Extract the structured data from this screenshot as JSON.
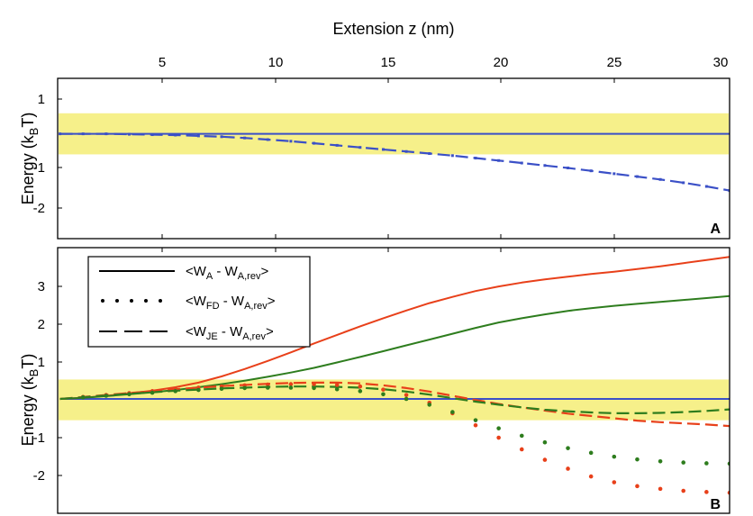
{
  "figure": {
    "x_axis_title": "Extension z (nm)",
    "x_ticks": [
      "5",
      "10",
      "15",
      "20",
      "25",
      "30"
    ],
    "band_color": "#f6f08a",
    "zero_line_color": "#3b50c7",
    "accent_blue": "#3b50c7",
    "accent_red": "#e8401a",
    "accent_green": "#2e7d1e"
  },
  "chart_data": [
    {
      "panel": "A",
      "type": "line",
      "ylabel": "Energy (k",
      "ylabel_sub": "B",
      "ylabel_end": "T)",
      "y_ticks": [
        "1",
        "-1",
        "-2"
      ],
      "xlim": [
        0.9,
        30
      ],
      "ylim": [
        -2.55,
        1.35
      ],
      "band": [
        -0.5,
        0.5
      ],
      "series": [
        {
          "style": "solid",
          "color": "#3b50c7",
          "x": [
            1,
            30
          ],
          "y": [
            0,
            0
          ]
        },
        {
          "style": "dashed",
          "color": "#3b50c7",
          "x": [
            1,
            2,
            3,
            4,
            5,
            6,
            7,
            8,
            9,
            10,
            11,
            12,
            13,
            14,
            15,
            16,
            17,
            18,
            19,
            20,
            21,
            22,
            23,
            24,
            25,
            26,
            27,
            28,
            29,
            30
          ],
          "y": [
            0,
            0,
            0,
            -0.01,
            -0.02,
            -0.03,
            -0.05,
            -0.07,
            -0.1,
            -0.14,
            -0.18,
            -0.23,
            -0.28,
            -0.33,
            -0.38,
            -0.43,
            -0.48,
            -0.53,
            -0.59,
            -0.65,
            -0.71,
            -0.77,
            -0.83,
            -0.9,
            -0.97,
            -1.04,
            -1.11,
            -1.19,
            -1.28,
            -1.38
          ]
        }
      ]
    },
    {
      "panel": "B",
      "type": "line",
      "ylabel": "Energy (k",
      "ylabel_sub": "B",
      "ylabel_end": "T)",
      "y_ticks": [
        "3",
        "2",
        "1",
        "-1",
        "-2"
      ],
      "xlim": [
        0.9,
        30
      ],
      "ylim": [
        -2.95,
        3.9
      ],
      "band": [
        -0.55,
        0.5
      ],
      "legend_position": "top-left",
      "legend": [
        {
          "style": "solid",
          "prefix": "<W",
          "sub1": "A",
          "mid": " - W",
          "sub2": "A,rev",
          "suffix": ">"
        },
        {
          "style": "dotted",
          "prefix": "<W",
          "sub1": "FD",
          "mid": " - W",
          "sub2": "A,rev",
          "suffix": ">"
        },
        {
          "style": "dashed",
          "prefix": "<W",
          "sub1": "JE",
          "mid": " - W",
          "sub2": "A,rev",
          "suffix": ">"
        }
      ],
      "series": [
        {
          "style": "solid",
          "color": "#3b50c7",
          "x": [
            1,
            30
          ],
          "y": [
            0,
            0
          ]
        },
        {
          "style": "solid",
          "color": "#e8401a",
          "x": [
            1,
            2,
            3,
            4,
            5,
            6,
            7,
            8,
            9,
            10,
            11,
            12,
            13,
            14,
            15,
            16,
            17,
            18,
            19,
            20,
            21,
            22,
            23,
            24,
            25,
            26,
            27,
            28,
            29,
            30
          ],
          "y": [
            0,
            0.03,
            0.08,
            0.14,
            0.21,
            0.3,
            0.42,
            0.58,
            0.77,
            0.98,
            1.2,
            1.43,
            1.65,
            1.87,
            2.08,
            2.28,
            2.47,
            2.63,
            2.78,
            2.9,
            3.0,
            3.08,
            3.15,
            3.22,
            3.28,
            3.35,
            3.42,
            3.5,
            3.58,
            3.66
          ]
        },
        {
          "style": "solid",
          "color": "#2e7d1e",
          "x": [
            1,
            2,
            3,
            4,
            5,
            6,
            7,
            8,
            9,
            10,
            11,
            12,
            13,
            14,
            15,
            16,
            17,
            18,
            19,
            20,
            21,
            22,
            23,
            24,
            25,
            26,
            27,
            28,
            29,
            30
          ],
          "y": [
            0,
            0.03,
            0.07,
            0.12,
            0.17,
            0.23,
            0.3,
            0.38,
            0.47,
            0.57,
            0.68,
            0.8,
            0.94,
            1.08,
            1.23,
            1.38,
            1.53,
            1.68,
            1.83,
            1.97,
            2.08,
            2.18,
            2.27,
            2.34,
            2.4,
            2.45,
            2.5,
            2.55,
            2.6,
            2.65
          ]
        },
        {
          "style": "dashed",
          "color": "#e8401a",
          "x": [
            1,
            2,
            3,
            4,
            5,
            6,
            7,
            8,
            9,
            10,
            11,
            12,
            13,
            14,
            15,
            16,
            17,
            18,
            19,
            20,
            21,
            22,
            23,
            24,
            25,
            26,
            27,
            28,
            29,
            30
          ],
          "y": [
            0,
            0.05,
            0.1,
            0.15,
            0.2,
            0.25,
            0.29,
            0.33,
            0.36,
            0.39,
            0.41,
            0.42,
            0.42,
            0.4,
            0.35,
            0.28,
            0.19,
            0.08,
            -0.03,
            -0.13,
            -0.22,
            -0.3,
            -0.38,
            -0.44,
            -0.5,
            -0.56,
            -0.6,
            -0.63,
            -0.66,
            -0.7
          ]
        },
        {
          "style": "dashed",
          "color": "#2e7d1e",
          "x": [
            1,
            2,
            3,
            4,
            5,
            6,
            7,
            8,
            9,
            10,
            11,
            12,
            13,
            14,
            15,
            16,
            17,
            18,
            19,
            20,
            21,
            22,
            23,
            24,
            25,
            26,
            27,
            28,
            29,
            30
          ],
          "y": [
            0,
            0.04,
            0.09,
            0.13,
            0.17,
            0.21,
            0.24,
            0.27,
            0.29,
            0.31,
            0.32,
            0.32,
            0.31,
            0.29,
            0.25,
            0.19,
            0.11,
            0.02,
            -0.07,
            -0.15,
            -0.22,
            -0.28,
            -0.32,
            -0.35,
            -0.37,
            -0.37,
            -0.36,
            -0.34,
            -0.31,
            -0.27
          ]
        },
        {
          "style": "dotted",
          "color": "#e8401a",
          "x": [
            1,
            2,
            3,
            4,
            5,
            6,
            7,
            8,
            9,
            10,
            11,
            12,
            13,
            14,
            15,
            16,
            17,
            18,
            19,
            20,
            21,
            22,
            23,
            24,
            25,
            26,
            27,
            28,
            29,
            30
          ],
          "y": [
            0,
            0.05,
            0.1,
            0.15,
            0.2,
            0.25,
            0.29,
            0.32,
            0.35,
            0.37,
            0.38,
            0.38,
            0.36,
            0.32,
            0.24,
            0.1,
            -0.1,
            -0.37,
            -0.68,
            -1.0,
            -1.3,
            -1.57,
            -1.8,
            -2.0,
            -2.15,
            -2.25,
            -2.32,
            -2.37,
            -2.4,
            -2.42
          ]
        },
        {
          "style": "dotted",
          "color": "#2e7d1e",
          "x": [
            1,
            2,
            3,
            4,
            5,
            6,
            7,
            8,
            9,
            10,
            11,
            12,
            13,
            14,
            15,
            16,
            17,
            18,
            19,
            20,
            21,
            22,
            23,
            24,
            25,
            26,
            27,
            28,
            29,
            30
          ],
          "y": [
            0,
            0.04,
            0.08,
            0.12,
            0.16,
            0.2,
            0.23,
            0.26,
            0.28,
            0.29,
            0.29,
            0.28,
            0.25,
            0.2,
            0.12,
            0.0,
            -0.15,
            -0.34,
            -0.55,
            -0.76,
            -0.95,
            -1.12,
            -1.27,
            -1.39,
            -1.49,
            -1.56,
            -1.61,
            -1.64,
            -1.66,
            -1.67
          ]
        }
      ]
    }
  ]
}
